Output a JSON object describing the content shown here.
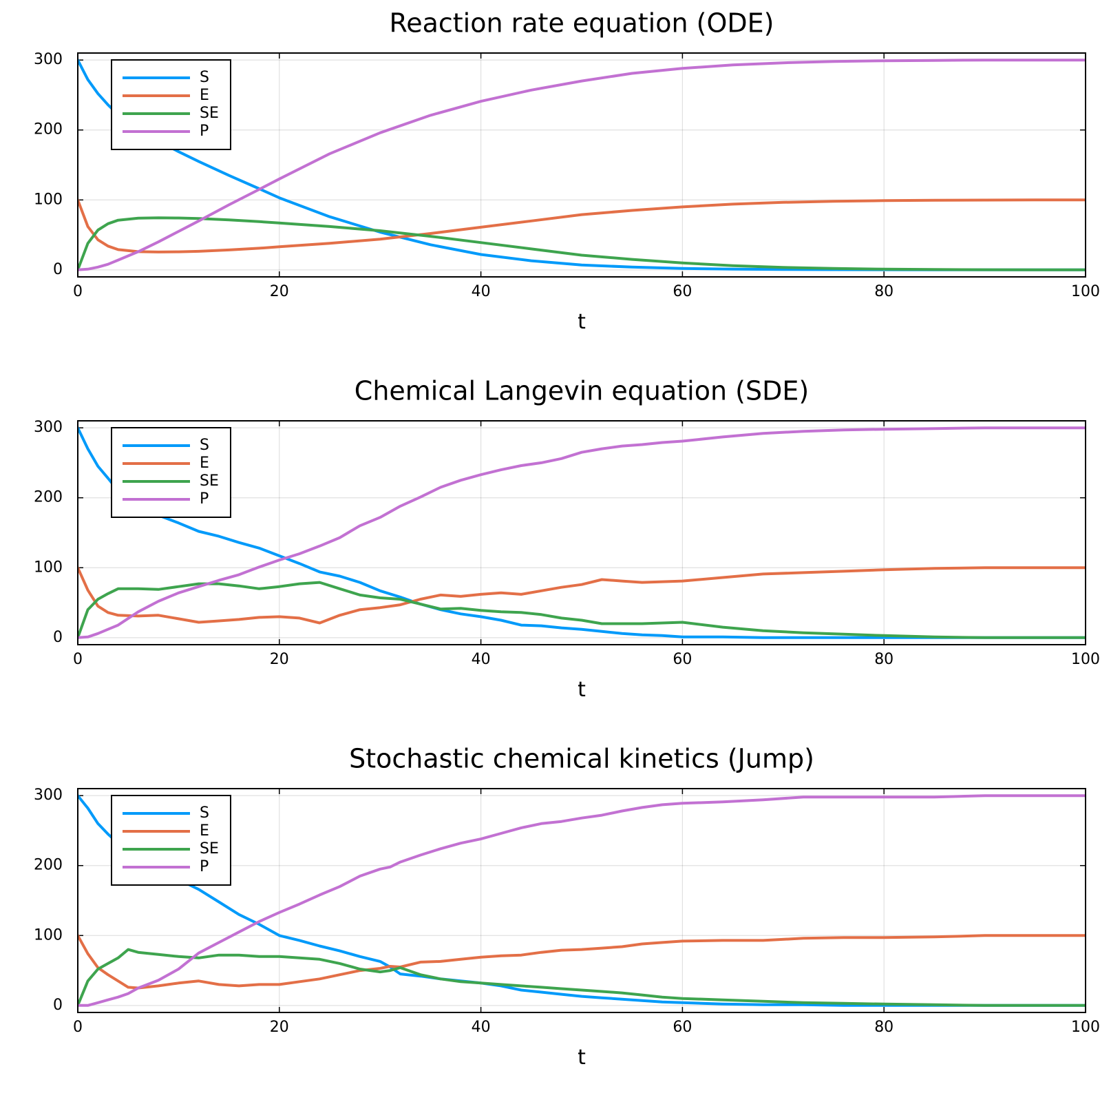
{
  "chart_data": [
    {
      "type": "line",
      "title": "Reaction rate equation (ODE)",
      "xlabel": "t",
      "ylabel": "",
      "xlim": [
        0,
        100
      ],
      "ylim": [
        -10,
        310
      ],
      "xticks": [
        "0",
        "20",
        "40",
        "60",
        "80",
        "100"
      ],
      "yticks": [
        "0",
        "100",
        "200",
        "300"
      ],
      "grid": true,
      "legend_position": "top-left",
      "x": [
        0,
        1,
        2,
        3,
        4,
        6,
        8,
        10,
        12,
        15,
        18,
        20,
        25,
        30,
        35,
        40,
        45,
        50,
        55,
        60,
        65,
        70,
        75,
        80,
        85,
        90,
        95,
        100
      ],
      "series": [
        {
          "name": "S",
          "color": "#009AFA",
          "values": [
            300,
            272,
            252,
            236,
            222,
            201,
            184,
            169,
            155,
            135,
            116,
            103,
            76,
            54,
            36,
            22,
            13,
            7,
            4,
            2,
            1,
            0.6,
            0.3,
            0.2,
            0.1,
            0,
            0,
            0
          ]
        },
        {
          "name": "E",
          "color": "#E36F47",
          "values": [
            100,
            62,
            43,
            34,
            29,
            26,
            25.5,
            25.8,
            26.5,
            28.5,
            31,
            33,
            38,
            44,
            52,
            61,
            70,
            79,
            85,
            90,
            94,
            96.5,
            98,
            99,
            99.5,
            99.8,
            100,
            100
          ]
        },
        {
          "name": "SE",
          "color": "#3EA44E",
          "values": [
            0,
            38,
            57,
            66,
            71,
            74,
            74.5,
            74.2,
            73.5,
            71.5,
            69,
            67,
            62,
            56,
            48,
            39,
            30,
            21,
            15,
            10,
            6,
            3.5,
            2,
            1,
            0.5,
            0.2,
            0,
            0
          ]
        },
        {
          "name": "P",
          "color": "#C271D2",
          "values": [
            0,
            1,
            4,
            8,
            14,
            26,
            40,
            55,
            70,
            93,
            115,
            130,
            166,
            196,
            221,
            241,
            257,
            270,
            281,
            288,
            293,
            296,
            298,
            299,
            299.5,
            300,
            300,
            300
          ]
        }
      ]
    },
    {
      "type": "line",
      "title": "Chemical Langevin equation (SDE)",
      "xlabel": "t",
      "ylabel": "",
      "xlim": [
        0,
        100
      ],
      "ylim": [
        -10,
        310
      ],
      "xticks": [
        "0",
        "20",
        "40",
        "60",
        "80",
        "100"
      ],
      "yticks": [
        "0",
        "100",
        "200",
        "300"
      ],
      "grid": true,
      "legend_position": "top-left",
      "x": [
        0,
        1,
        2,
        3,
        4,
        6,
        8,
        10,
        12,
        14,
        16,
        18,
        20,
        22,
        24,
        26,
        28,
        30,
        32,
        34,
        36,
        38,
        40,
        42,
        44,
        46,
        48,
        50,
        52,
        54,
        56,
        58,
        60,
        64,
        68,
        72,
        76,
        80,
        85,
        90,
        95,
        100
      ],
      "series": [
        {
          "name": "S",
          "color": "#009AFA",
          "values": [
            300,
            270,
            245,
            228,
            210,
            190,
            175,
            164,
            152,
            145,
            136,
            128,
            117,
            106,
            94,
            88,
            79,
            67,
            58,
            48,
            40,
            34,
            30,
            25,
            18,
            17,
            14,
            12,
            9,
            6,
            4,
            3,
            1,
            1,
            0,
            0,
            0,
            0,
            0,
            0,
            0,
            0
          ]
        },
        {
          "name": "E",
          "color": "#E36F47",
          "values": [
            100,
            68,
            45,
            36,
            32,
            31,
            32,
            27,
            22,
            24,
            26,
            29,
            30,
            28,
            21,
            32,
            40,
            43,
            47,
            55,
            61,
            59,
            62,
            64,
            62,
            67,
            72,
            76,
            83,
            81,
            79,
            80,
            81,
            86,
            91,
            93,
            95,
            97,
            99,
            100,
            100,
            100
          ]
        },
        {
          "name": "SE",
          "color": "#3EA44E",
          "values": [
            0,
            40,
            55,
            63,
            70,
            70,
            69,
            73,
            77,
            77,
            74,
            70,
            73,
            77,
            79,
            70,
            61,
            57,
            55,
            48,
            41,
            42,
            39,
            37,
            36,
            33,
            28,
            25,
            20,
            20,
            20,
            21,
            22,
            15,
            10,
            7,
            5,
            3,
            1,
            0,
            0,
            0
          ]
        },
        {
          "name": "P",
          "color": "#C271D2",
          "values": [
            0,
            1,
            6,
            12,
            18,
            37,
            52,
            64,
            73,
            82,
            90,
            101,
            111,
            120,
            131,
            143,
            160,
            172,
            188,
            201,
            215,
            225,
            233,
            240,
            246,
            250,
            256,
            265,
            270,
            274,
            276,
            279,
            281,
            287,
            292,
            295,
            297,
            298,
            299,
            300,
            300,
            300
          ]
        }
      ]
    },
    {
      "type": "line",
      "title": "Stochastic chemical kinetics (Jump)",
      "xlabel": "t",
      "ylabel": "",
      "xlim": [
        0,
        100
      ],
      "ylim": [
        -10,
        310
      ],
      "xticks": [
        "0",
        "20",
        "40",
        "60",
        "80",
        "100"
      ],
      "yticks": [
        "0",
        "100",
        "200",
        "300"
      ],
      "grid": true,
      "legend_position": "top-left",
      "x": [
        0,
        1,
        2,
        3,
        4,
        5,
        6,
        8,
        10,
        12,
        14,
        16,
        18,
        20,
        22,
        24,
        26,
        28,
        30,
        31,
        32,
        34,
        36,
        38,
        40,
        42,
        44,
        46,
        48,
        50,
        52,
        54,
        56,
        58,
        60,
        64,
        68,
        72,
        76,
        80,
        85,
        90,
        95,
        100
      ],
      "series": [
        {
          "name": "S",
          "color": "#009AFA",
          "values": [
            300,
            282,
            260,
            245,
            232,
            220,
            210,
            195,
            180,
            166,
            148,
            130,
            116,
            100,
            93,
            85,
            78,
            70,
            63,
            55,
            45,
            42,
            38,
            35,
            32,
            28,
            22,
            19,
            16,
            13,
            11,
            9,
            7,
            5,
            4,
            2,
            1,
            1,
            0,
            0,
            0,
            0,
            0,
            0
          ]
        },
        {
          "name": "E",
          "color": "#E36F47",
          "values": [
            100,
            74,
            54,
            44,
            35,
            26,
            25,
            28,
            32,
            35,
            30,
            28,
            30,
            30,
            34,
            38,
            44,
            50,
            53,
            56,
            55,
            62,
            63,
            66,
            69,
            71,
            72,
            76,
            79,
            80,
            82,
            84,
            88,
            90,
            92,
            93,
            93,
            96,
            97,
            97,
            98,
            100,
            100,
            100
          ]
        },
        {
          "name": "SE",
          "color": "#3EA44E",
          "values": [
            0,
            35,
            52,
            60,
            68,
            80,
            76,
            73,
            70,
            68,
            72,
            72,
            70,
            70,
            68,
            66,
            60,
            52,
            48,
            50,
            54,
            44,
            38,
            34,
            32,
            30,
            28,
            26,
            24,
            22,
            20,
            18,
            15,
            12,
            10,
            8,
            6,
            4,
            3,
            2,
            1,
            0,
            0,
            0
          ]
        },
        {
          "name": "P",
          "color": "#C271D2",
          "values": [
            0,
            0,
            4,
            8,
            12,
            17,
            25,
            36,
            52,
            75,
            90,
            105,
            120,
            133,
            145,
            158,
            170,
            185,
            195,
            198,
            205,
            215,
            224,
            232,
            238,
            246,
            254,
            260,
            263,
            268,
            272,
            278,
            283,
            287,
            289,
            291,
            294,
            298,
            298,
            298,
            298,
            300,
            300,
            300
          ]
        }
      ]
    }
  ]
}
